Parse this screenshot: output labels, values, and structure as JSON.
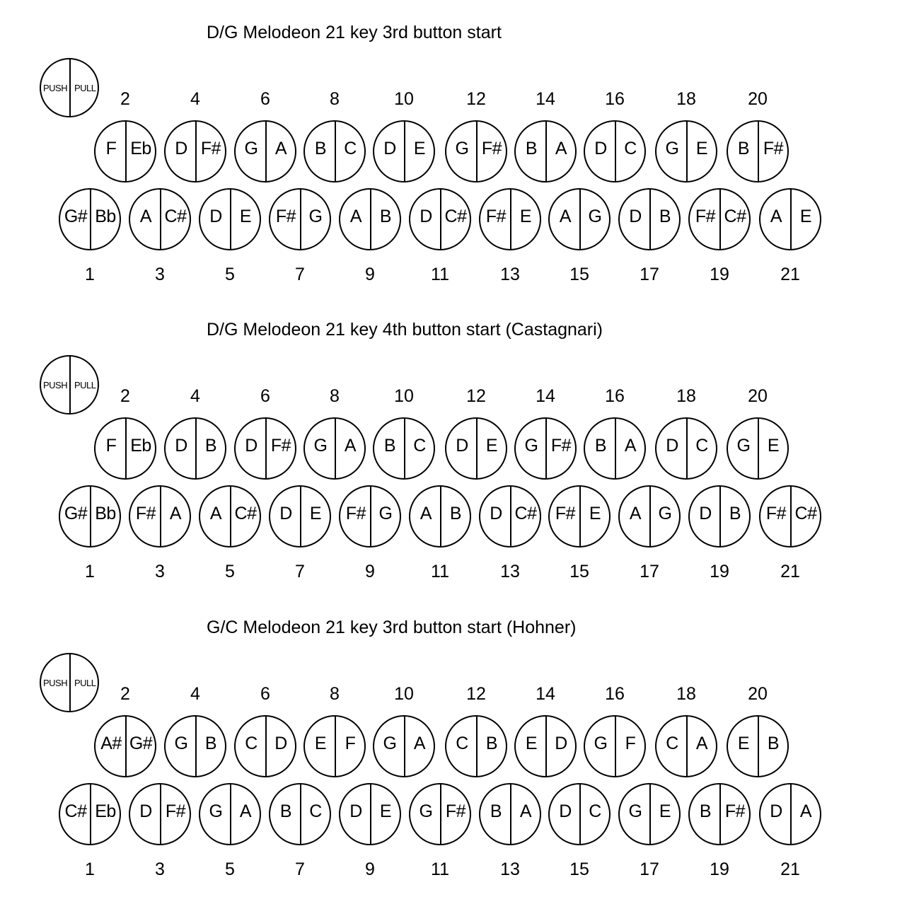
{
  "legend": {
    "push": "PUSH",
    "pull": "PULL"
  },
  "diagrams": [
    {
      "title": "D/G Melodeon 21 key 3rd button start",
      "inner_row": [
        {
          "number": "2",
          "push": "F",
          "pull": "Eb"
        },
        {
          "number": "4",
          "push": "D",
          "pull": "F#"
        },
        {
          "number": "6",
          "push": "G",
          "pull": "A"
        },
        {
          "number": "8",
          "push": "B",
          "pull": "C"
        },
        {
          "number": "10",
          "push": "D",
          "pull": "E"
        },
        {
          "number": "12",
          "push": "G",
          "pull": "F#"
        },
        {
          "number": "14",
          "push": "B",
          "pull": "A"
        },
        {
          "number": "16",
          "push": "D",
          "pull": "C"
        },
        {
          "number": "18",
          "push": "G",
          "pull": "E"
        },
        {
          "number": "20",
          "push": "B",
          "pull": "F#"
        }
      ],
      "outer_row": [
        {
          "number": "1",
          "push": "G#",
          "pull": "Bb"
        },
        {
          "number": "3",
          "push": "A",
          "pull": "C#"
        },
        {
          "number": "5",
          "push": "D",
          "pull": "E"
        },
        {
          "number": "7",
          "push": "F#",
          "pull": "G"
        },
        {
          "number": "9",
          "push": "A",
          "pull": "B"
        },
        {
          "number": "11",
          "push": "D",
          "pull": "C#"
        },
        {
          "number": "13",
          "push": "F#",
          "pull": "E"
        },
        {
          "number": "15",
          "push": "A",
          "pull": "G"
        },
        {
          "number": "17",
          "push": "D",
          "pull": "B"
        },
        {
          "number": "19",
          "push": "F#",
          "pull": "C#"
        },
        {
          "number": "21",
          "push": "A",
          "pull": "E"
        }
      ]
    },
    {
      "title": "D/G Melodeon 21 key 4th button start (Castagnari)",
      "inner_row": [
        {
          "number": "2",
          "push": "F",
          "pull": "Eb"
        },
        {
          "number": "4",
          "push": "D",
          "pull": "B"
        },
        {
          "number": "6",
          "push": "D",
          "pull": "F#"
        },
        {
          "number": "8",
          "push": "G",
          "pull": "A"
        },
        {
          "number": "10",
          "push": "B",
          "pull": "C"
        },
        {
          "number": "12",
          "push": "D",
          "pull": "E"
        },
        {
          "number": "14",
          "push": "G",
          "pull": "F#"
        },
        {
          "number": "16",
          "push": "B",
          "pull": "A"
        },
        {
          "number": "18",
          "push": "D",
          "pull": "C"
        },
        {
          "number": "20",
          "push": "G",
          "pull": "E"
        }
      ],
      "outer_row": [
        {
          "number": "1",
          "push": "G#",
          "pull": "Bb"
        },
        {
          "number": "3",
          "push": "F#",
          "pull": "A"
        },
        {
          "number": "5",
          "push": "A",
          "pull": "C#"
        },
        {
          "number": "7",
          "push": "D",
          "pull": "E"
        },
        {
          "number": "9",
          "push": "F#",
          "pull": "G"
        },
        {
          "number": "11",
          "push": "A",
          "pull": "B"
        },
        {
          "number": "13",
          "push": "D",
          "pull": "C#"
        },
        {
          "number": "15",
          "push": "F#",
          "pull": "E"
        },
        {
          "number": "17",
          "push": "A",
          "pull": "G"
        },
        {
          "number": "19",
          "push": "D",
          "pull": "B"
        },
        {
          "number": "21",
          "push": "F#",
          "pull": "C#"
        }
      ]
    },
    {
      "title": "G/C Melodeon 21 key 3rd button start (Hohner)",
      "inner_row": [
        {
          "number": "2",
          "push": "A#",
          "pull": "G#"
        },
        {
          "number": "4",
          "push": "G",
          "pull": "B"
        },
        {
          "number": "6",
          "push": "C",
          "pull": "D"
        },
        {
          "number": "8",
          "push": "E",
          "pull": "F"
        },
        {
          "number": "10",
          "push": "G",
          "pull": "A"
        },
        {
          "number": "12",
          "push": "C",
          "pull": "B"
        },
        {
          "number": "14",
          "push": "E",
          "pull": "D"
        },
        {
          "number": "16",
          "push": "G",
          "pull": "F"
        },
        {
          "number": "18",
          "push": "C",
          "pull": "A"
        },
        {
          "number": "20",
          "push": "E",
          "pull": "B"
        }
      ],
      "outer_row": [
        {
          "number": "1",
          "push": "C#",
          "pull": "Eb"
        },
        {
          "number": "3",
          "push": "D",
          "pull": "F#"
        },
        {
          "number": "5",
          "push": "G",
          "pull": "A"
        },
        {
          "number": "7",
          "push": "B",
          "pull": "C"
        },
        {
          "number": "9",
          "push": "D",
          "pull": "E"
        },
        {
          "number": "11",
          "push": "G",
          "pull": "F#"
        },
        {
          "number": "13",
          "push": "B",
          "pull": "A"
        },
        {
          "number": "15",
          "push": "D",
          "pull": "C"
        },
        {
          "number": "17",
          "push": "G",
          "pull": "E"
        },
        {
          "number": "19",
          "push": "B",
          "pull": "F#"
        },
        {
          "number": "21",
          "push": "D",
          "pull": "A"
        }
      ]
    }
  ]
}
